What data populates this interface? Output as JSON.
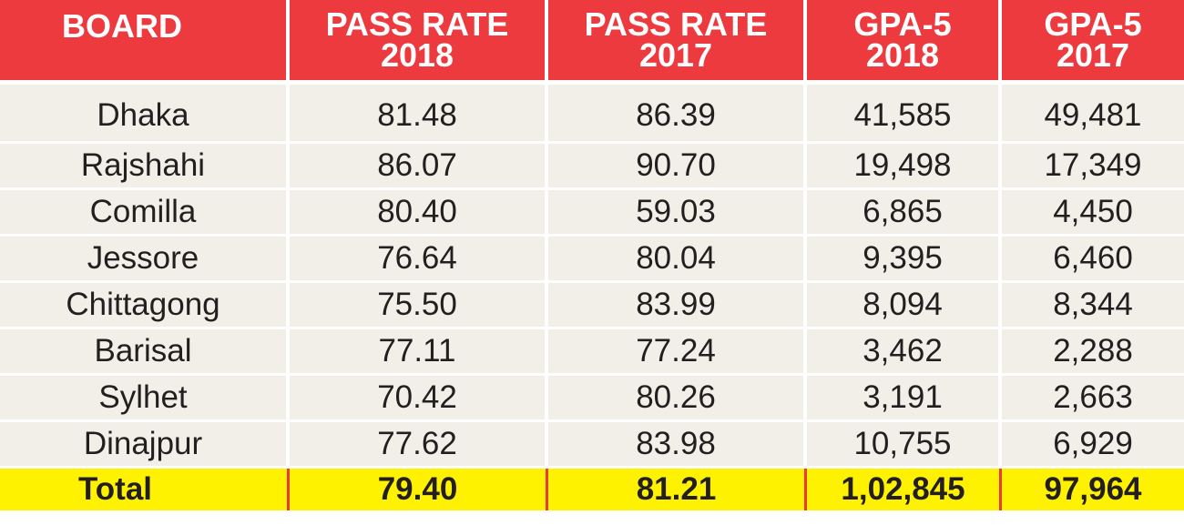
{
  "chart_data": {
    "type": "table",
    "columns": [
      "BOARD",
      "PASS RATE 2018",
      "PASS RATE 2017",
      "GPA-5 2018",
      "GPA-5 2017"
    ],
    "header_lines": [
      [
        "BOARD"
      ],
      [
        "PASS RATE",
        "2018"
      ],
      [
        "PASS RATE",
        "2017"
      ],
      [
        "GPA-5",
        "2018"
      ],
      [
        "GPA-5",
        "2017"
      ]
    ],
    "rows": [
      [
        "Dhaka",
        "81.48",
        "86.39",
        "41,585",
        "49,481"
      ],
      [
        "Rajshahi",
        "86.07",
        "90.70",
        "19,498",
        "17,349"
      ],
      [
        "Comilla",
        "80.40",
        "59.03",
        "6,865",
        "4,450"
      ],
      [
        "Jessore",
        "76.64",
        "80.04",
        "9,395",
        "6,460"
      ],
      [
        "Chittagong",
        "75.50",
        "83.99",
        "8,094",
        "8,344"
      ],
      [
        "Barisal",
        "77.11",
        "77.24",
        "3,462",
        "2,288"
      ],
      [
        "Sylhet",
        "70.42",
        "80.26",
        "3,191",
        "2,663"
      ],
      [
        "Dinajpur",
        "77.62",
        "83.98",
        "10,755",
        "6,929"
      ]
    ],
    "total": [
      "Total",
      "79.40",
      "81.21",
      "1,02,845",
      "97,964"
    ]
  },
  "colors": {
    "header_bg": "#ec3a3f",
    "header_text": "#ffffff",
    "body_bg": "#f2efe8",
    "body_text": "#231f20",
    "total_bg": "#fff200",
    "total_divider": "#ec3a3f"
  }
}
